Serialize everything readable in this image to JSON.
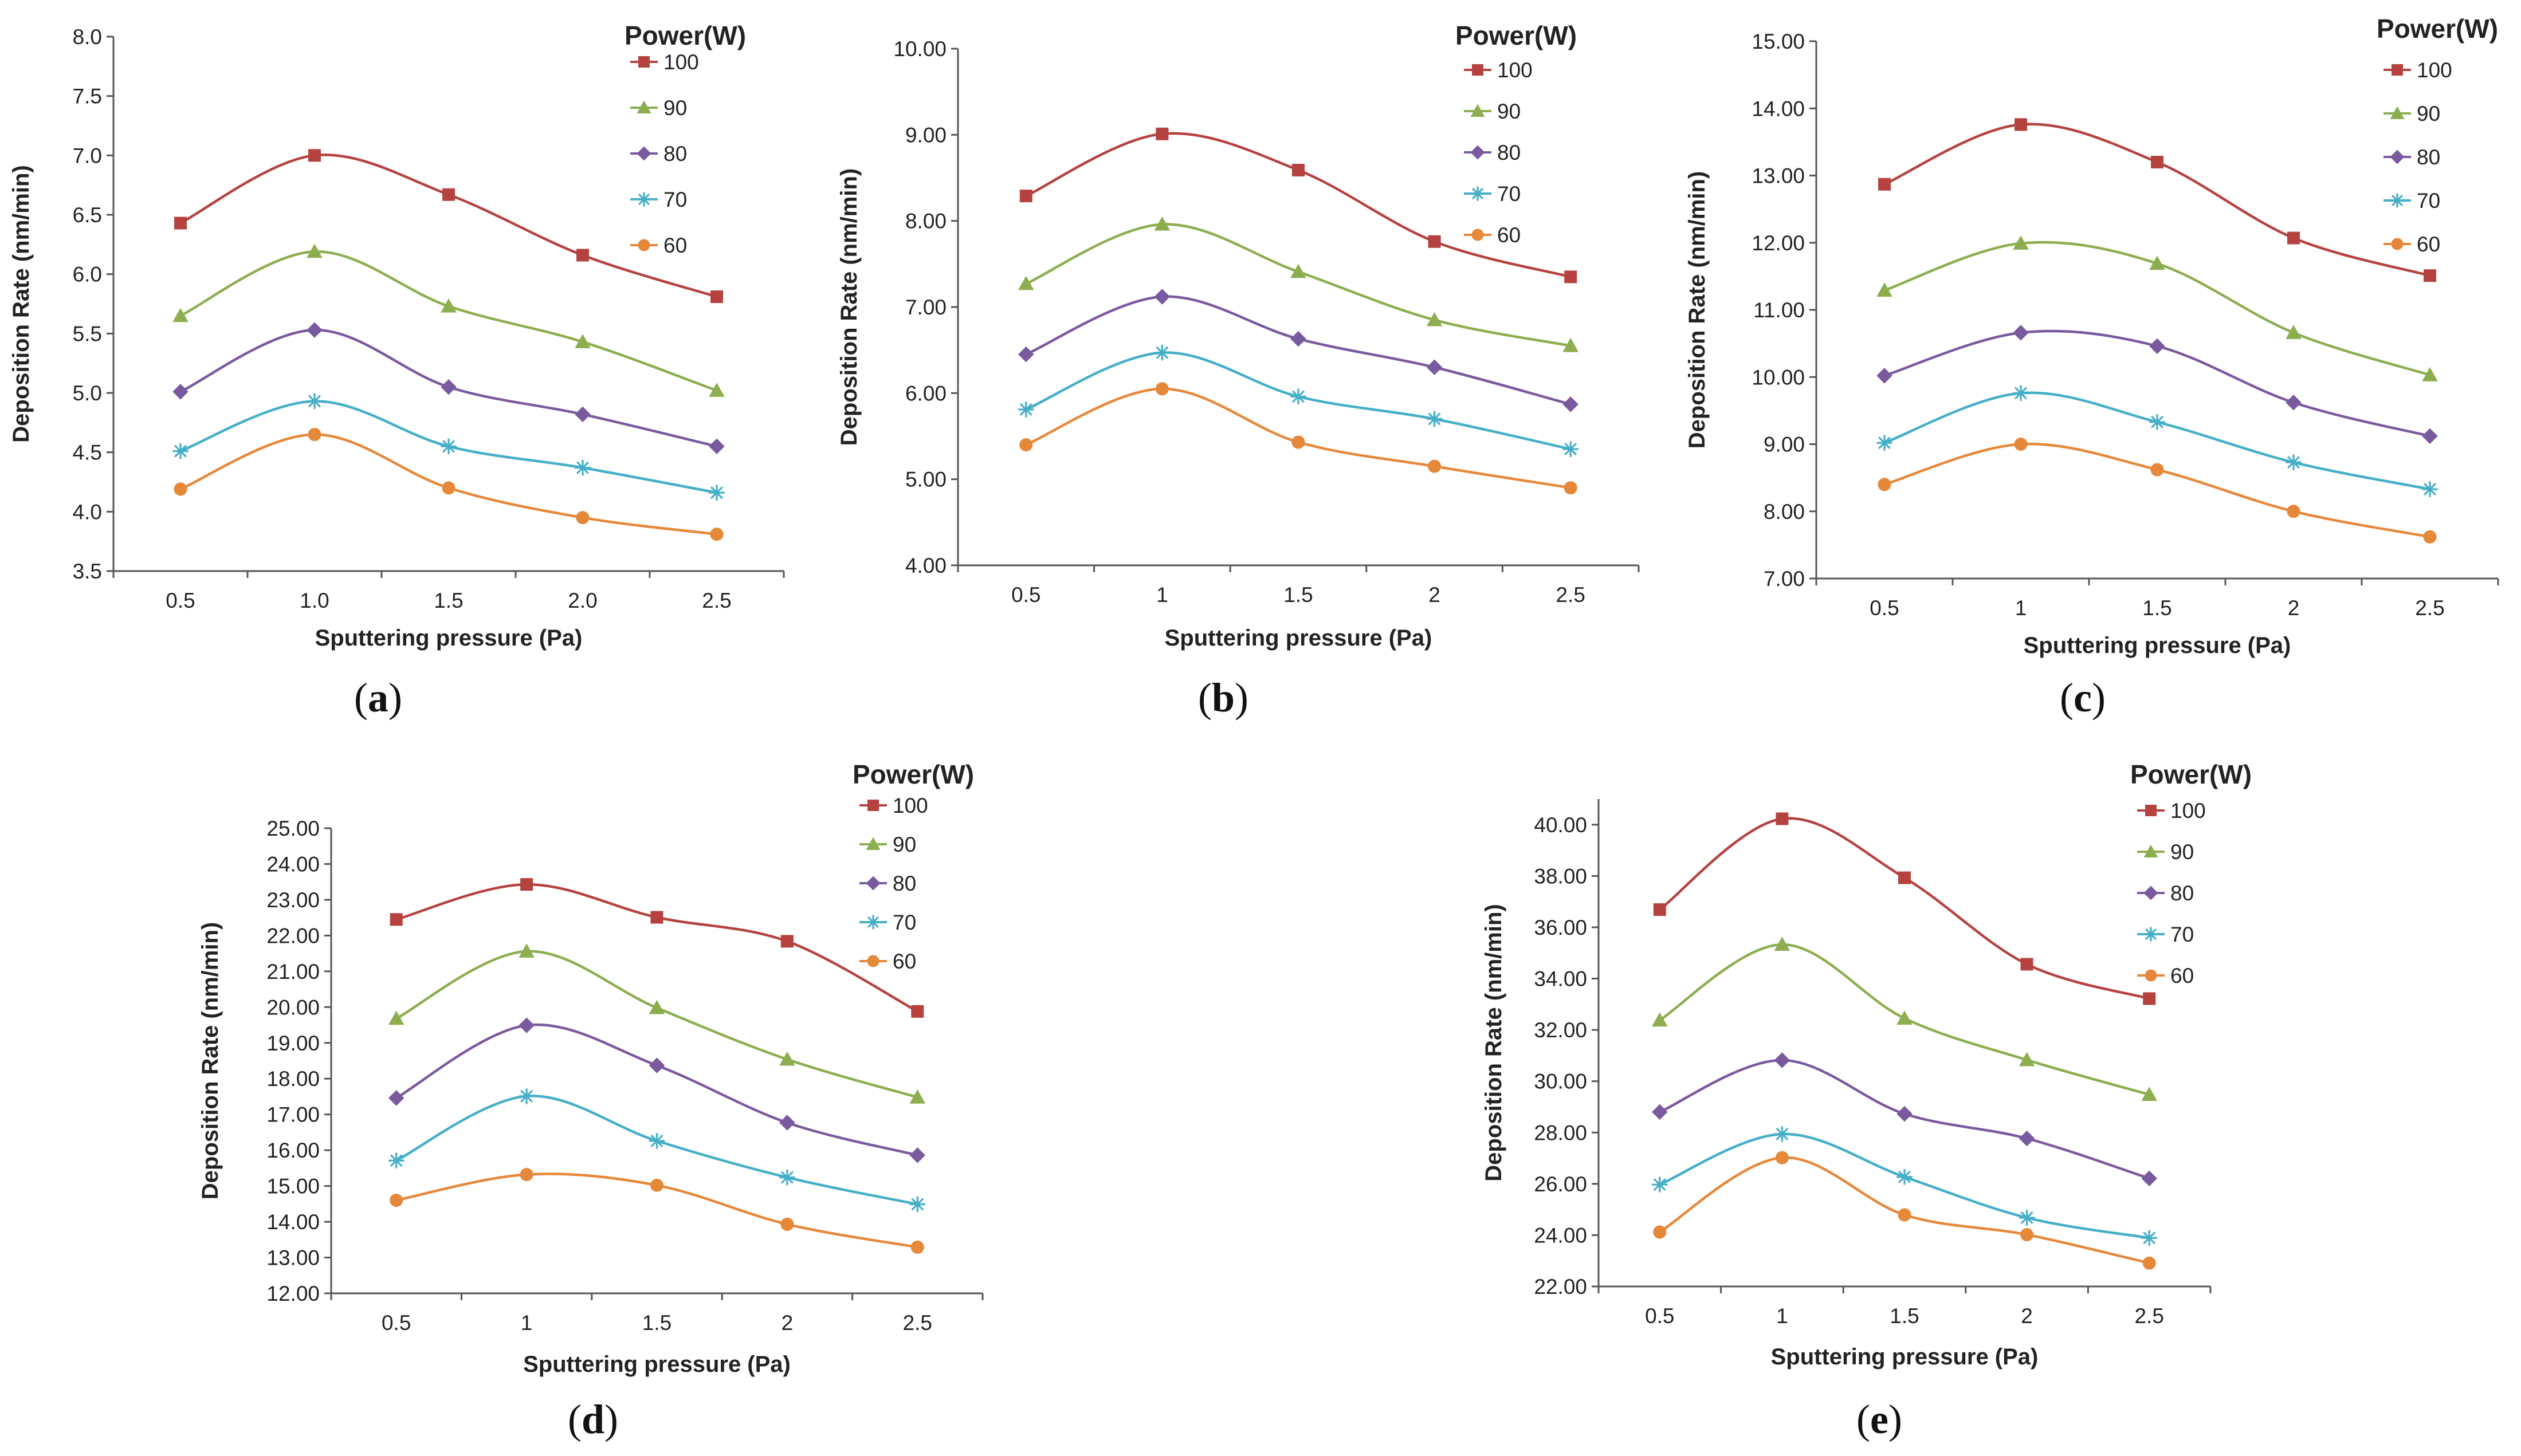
{
  "colors": {
    "100": "#B5423F",
    "90": "#8CAE4F",
    "80": "#7A5A9E",
    "70": "#45AFC8",
    "60": "#E6883A",
    "axis": "#555555"
  },
  "legend": {
    "title": "Power(W)",
    "entries": [
      {
        "name": "100",
        "marker": "square"
      },
      {
        "name": "90",
        "marker": "triangle"
      },
      {
        "name": "80",
        "marker": "diamond"
      },
      {
        "name": "70",
        "marker": "star"
      },
      {
        "name": "60",
        "marker": "circle"
      }
    ]
  },
  "chart_data": [
    {
      "type": "line",
      "caption": "a",
      "title": "",
      "xlabel": "Sputtering pressure (Pa)",
      "ylabel": "Deposition Rate (nm/min)",
      "x": [
        0.5,
        1.0,
        1.5,
        2.0,
        2.5
      ],
      "x_tick_labels": [
        "0.5",
        "1.0",
        "1.5",
        "2.0",
        "2.5"
      ],
      "ylim": [
        3.5,
        8.0
      ],
      "y_ticks": [
        3.5,
        4.0,
        4.5,
        5.0,
        5.5,
        6.0,
        6.5,
        7.0,
        7.5,
        8.0
      ],
      "y_tick_labels": [
        "3.5",
        "4.0",
        "4.5",
        "5.0",
        "5.5",
        "6.0",
        "6.5",
        "7.0",
        "7.5",
        "8.0"
      ],
      "legend_title": "Power(W)",
      "series": [
        {
          "name": "100",
          "values": [
            6.43,
            7.0,
            6.67,
            6.16,
            5.81
          ]
        },
        {
          "name": "90",
          "values": [
            5.65,
            6.19,
            5.73,
            5.43,
            5.02
          ]
        },
        {
          "name": "80",
          "values": [
            5.01,
            5.53,
            5.05,
            4.82,
            4.55
          ]
        },
        {
          "name": "70",
          "values": [
            4.51,
            4.93,
            4.55,
            4.37,
            4.16
          ]
        },
        {
          "name": "60",
          "values": [
            4.19,
            4.65,
            4.2,
            3.95,
            3.81
          ]
        }
      ]
    },
    {
      "type": "line",
      "caption": "b",
      "title": "",
      "xlabel": "Sputtering pressure (Pa)",
      "ylabel": "Deposition Rate (nm/min)",
      "x": [
        0.5,
        1,
        1.5,
        2,
        2.5
      ],
      "x_tick_labels": [
        "0.5",
        "1",
        "1.5",
        "2",
        "2.5"
      ],
      "ylim": [
        4.0,
        10.0
      ],
      "y_ticks": [
        4,
        5,
        6,
        7,
        8,
        9,
        10
      ],
      "y_tick_labels": [
        "4.00",
        "5.00",
        "6.00",
        "7.00",
        "8.00",
        "9.00",
        "10.00"
      ],
      "legend_title": "Power(W)",
      "series": [
        {
          "name": "100",
          "values": [
            8.29,
            9.01,
            8.59,
            7.76,
            7.35
          ]
        },
        {
          "name": "90",
          "values": [
            7.27,
            7.96,
            7.41,
            6.85,
            6.55
          ]
        },
        {
          "name": "80",
          "values": [
            6.45,
            7.12,
            6.63,
            6.3,
            5.87
          ]
        },
        {
          "name": "70",
          "values": [
            5.81,
            6.47,
            5.96,
            5.7,
            5.35
          ]
        },
        {
          "name": "60",
          "values": [
            5.4,
            6.05,
            5.43,
            5.15,
            4.9
          ]
        }
      ]
    },
    {
      "type": "line",
      "caption": "c",
      "title": "",
      "xlabel": "Sputtering pressure (Pa)",
      "ylabel": "Deposition Rate (nm/min)",
      "x": [
        0.5,
        1,
        1.5,
        2,
        2.5
      ],
      "x_tick_labels": [
        "0.5",
        "1",
        "1.5",
        "2",
        "2.5"
      ],
      "ylim": [
        7.0,
        15.0
      ],
      "y_ticks": [
        7,
        8,
        9,
        10,
        11,
        12,
        13,
        14,
        15
      ],
      "y_tick_labels": [
        "7.00",
        "8.00",
        "9.00",
        "10.00",
        "11.00",
        "12.00",
        "13.00",
        "14.00",
        "15.00"
      ],
      "legend_title": "Power(W)",
      "series": [
        {
          "name": "100",
          "values": [
            12.87,
            13.76,
            13.2,
            12.07,
            11.51
          ]
        },
        {
          "name": "90",
          "values": [
            11.29,
            11.99,
            11.69,
            10.66,
            10.03
          ]
        },
        {
          "name": "80",
          "values": [
            10.02,
            10.66,
            10.46,
            9.62,
            9.12
          ]
        },
        {
          "name": "70",
          "values": [
            9.02,
            9.76,
            9.33,
            8.73,
            8.33
          ]
        },
        {
          "name": "60",
          "values": [
            8.4,
            9.0,
            8.62,
            8.0,
            7.62
          ]
        }
      ]
    },
    {
      "type": "line",
      "caption": "d",
      "title": "",
      "xlabel": "Sputtering pressure (Pa)",
      "ylabel": "Deposition Rate (nm/min)",
      "x": [
        0.5,
        1,
        1.5,
        2,
        2.5
      ],
      "x_tick_labels": [
        "0.5",
        "1",
        "1.5",
        "2",
        "2.5"
      ],
      "ylim": [
        12.0,
        25.0
      ],
      "y_ticks": [
        12,
        13,
        14,
        15,
        16,
        17,
        18,
        19,
        20,
        21,
        22,
        23,
        24,
        25
      ],
      "y_tick_labels": [
        "12.00",
        "13.00",
        "14.00",
        "15.00",
        "16.00",
        "17.00",
        "18.00",
        "19.00",
        "20.00",
        "21.00",
        "22.00",
        "23.00",
        "24.00",
        "25.00"
      ],
      "legend_title": "Power(W)",
      "series": [
        {
          "name": "100",
          "values": [
            22.45,
            23.43,
            22.51,
            21.84,
            19.88
          ]
        },
        {
          "name": "90",
          "values": [
            19.68,
            21.56,
            19.98,
            18.54,
            17.48
          ]
        },
        {
          "name": "80",
          "values": [
            17.46,
            19.49,
            18.37,
            16.77,
            15.86
          ]
        },
        {
          "name": "70",
          "values": [
            15.71,
            17.51,
            16.26,
            15.24,
            14.49
          ]
        },
        {
          "name": "60",
          "values": [
            14.6,
            15.32,
            15.02,
            13.93,
            13.29
          ]
        }
      ]
    },
    {
      "type": "line",
      "caption": "e",
      "title": "",
      "xlabel": "Sputtering pressure (Pa)",
      "ylabel": "Deposition Rate (nm/min)",
      "x": [
        0.5,
        1,
        1.5,
        2,
        2.5
      ],
      "x_tick_labels": [
        "0.5",
        "1",
        "1.5",
        "2",
        "2.5"
      ],
      "ylim": [
        22.0,
        41.0
      ],
      "y_ticks": [
        22,
        24,
        26,
        28,
        30,
        32,
        34,
        36,
        38,
        40
      ],
      "y_tick_labels": [
        "22.00",
        "24.00",
        "26.00",
        "28.00",
        "30.00",
        "32.00",
        "34.00",
        "36.00",
        "38.00",
        "40.00"
      ],
      "legend_title": "Power(W)",
      "series": [
        {
          "name": "100",
          "values": [
            36.69,
            40.23,
            37.93,
            34.56,
            33.22
          ]
        },
        {
          "name": "90",
          "values": [
            32.38,
            35.33,
            32.45,
            30.83,
            29.48
          ]
        },
        {
          "name": "80",
          "values": [
            28.8,
            30.82,
            28.73,
            27.77,
            26.21
          ]
        },
        {
          "name": "70",
          "values": [
            25.97,
            27.94,
            26.27,
            24.68,
            23.89
          ]
        },
        {
          "name": "60",
          "values": [
            24.12,
            27.02,
            24.79,
            24.02,
            22.91
          ]
        }
      ]
    }
  ]
}
